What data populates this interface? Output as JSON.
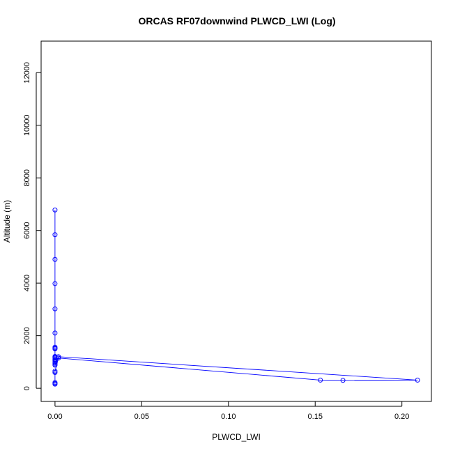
{
  "chart_data": {
    "type": "line",
    "title": "ORCAS RF07downwind PLWCD_LWI (Log)",
    "xlabel": "PLWCD_LWI",
    "ylabel": "Altitude (m)",
    "xlim": [
      -0.008,
      0.217
    ],
    "ylim": [
      -500,
      13200
    ],
    "xticks": [
      0.0,
      0.05,
      0.1,
      0.15,
      0.2
    ],
    "xtick_labels": [
      "0.00",
      "0.05",
      "0.10",
      "0.15",
      "0.20"
    ],
    "yticks": [
      0,
      2000,
      4000,
      6000,
      8000,
      10000,
      12000
    ],
    "ytick_labels": [
      "0",
      "2000",
      "4000",
      "6000",
      "8000",
      "10000",
      "12000"
    ],
    "grid": false,
    "series": [
      {
        "color": "#0000ff",
        "x": [
          0,
          0,
          0,
          0,
          0,
          0,
          0,
          0,
          0,
          0,
          0,
          0,
          0,
          0,
          0,
          0,
          0,
          0,
          0.002,
          0.209,
          0.166,
          0.153,
          0.002,
          0,
          0,
          0,
          0,
          0
        ],
        "y": [
          6780,
          5840,
          4900,
          3980,
          3020,
          2100,
          1560,
          1520,
          1500,
          1210,
          1180,
          1150,
          1100,
          1060,
          1000,
          950,
          900,
          880,
          1200,
          310,
          300,
          310,
          1150,
          650,
          600,
          220,
          180,
          160
        ]
      }
    ]
  }
}
